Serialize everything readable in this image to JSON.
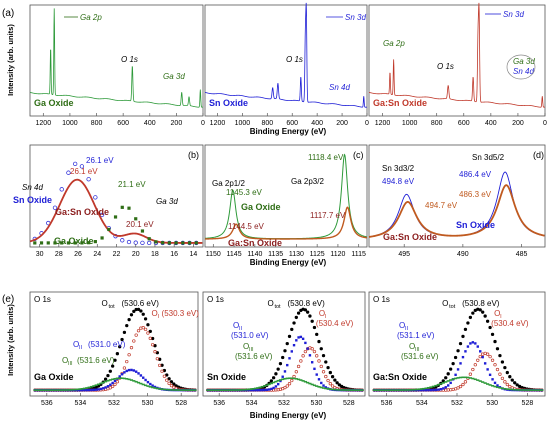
{
  "colors": {
    "green": "#2e9a3a",
    "dark_green": "#2f6e16",
    "blue": "#1f1fd6",
    "red": "#c0392b",
    "brown": "#c05a1f",
    "dark_red": "#8b1d1d",
    "black": "#000000",
    "axis": "#333333"
  },
  "chart_data": [
    {
      "panel": "a",
      "type": "line",
      "panel_label": "(a)",
      "ylabel": "Intensity (arb. units)",
      "xlabel": "Binding Energy (eV)",
      "xlim": [
        1300,
        0
      ],
      "subplots": [
        {
          "name": "Ga Oxide",
          "color": "green",
          "xticks": [
            1200,
            1000,
            800,
            600,
            400,
            200,
            0
          ],
          "annotations": [
            "Ga 2p",
            "O 1s",
            "Ga 3d"
          ],
          "peaks": [
            {
              "x": 1118,
              "h": 0.78,
              "w": 3
            },
            {
              "x": 1145,
              "h": 0.42,
              "w": 3
            },
            {
              "x": 531,
              "h": 0.32,
              "w": 4
            },
            {
              "x": 160,
              "h": 0.12,
              "w": 4
            },
            {
              "x": 105,
              "h": 0.08,
              "w": 4
            },
            {
              "x": 20,
              "h": 0.16,
              "w": 3
            }
          ]
        },
        {
          "name": "Sn Oxide",
          "color": "blue",
          "xticks": [
            1200,
            1000,
            800,
            600,
            400,
            200,
            0
          ],
          "annotations": [
            "Sn 3d",
            "O 1s",
            "Sn 4d"
          ],
          "peaks": [
            {
              "x": 487,
              "h": 0.8,
              "w": 4
            },
            {
              "x": 495,
              "h": 0.55,
              "w": 4
            },
            {
              "x": 531,
              "h": 0.22,
              "w": 4
            },
            {
              "x": 715,
              "h": 0.14,
              "w": 5
            },
            {
              "x": 757,
              "h": 0.1,
              "w": 5
            },
            {
              "x": 26,
              "h": 0.1,
              "w": 3
            }
          ]
        },
        {
          "name": "Ga:Sn Oxide",
          "color": "red",
          "xticks": [
            1200,
            1000,
            800,
            600,
            400,
            200,
            0
          ],
          "annotations": [
            "Sn 3d",
            "Ga 2p",
            "O 1s",
            "Ga 3d",
            "Sn 4d"
          ],
          "peaks": [
            {
              "x": 487,
              "h": 0.8,
              "w": 4
            },
            {
              "x": 495,
              "h": 0.55,
              "w": 4
            },
            {
              "x": 1118,
              "h": 0.32,
              "w": 3
            },
            {
              "x": 1145,
              "h": 0.2,
              "w": 3
            },
            {
              "x": 531,
              "h": 0.22,
              "w": 4
            },
            {
              "x": 715,
              "h": 0.12,
              "w": 5
            },
            {
              "x": 20,
              "h": 0.1,
              "w": 3
            }
          ]
        }
      ]
    },
    {
      "panel": "b",
      "type": "line",
      "panel_label": "(b)",
      "xlabel": "",
      "xlim": [
        31,
        13
      ],
      "xticks": [
        30,
        28,
        26,
        24,
        22,
        20,
        18,
        16,
        14
      ],
      "annotations": [
        "Sn 4d",
        "Ga 3d"
      ],
      "value_labels": [
        {
          "text": "26.1 eV",
          "color": "blue",
          "x": 26.1
        },
        {
          "text": "26.1 eV",
          "color": "red",
          "x": 26.1
        },
        {
          "text": "21.1 eV",
          "color": "dark_green",
          "x": 21.1
        },
        {
          "text": "20.1 eV",
          "color": "dark_red",
          "x": 20.1
        }
      ],
      "legend": [
        "Sn Oxide",
        "Ga:Sn Oxide",
        "Ga Oxide"
      ],
      "series": [
        {
          "name": "Sn Oxide",
          "color": "blue",
          "style": "open-circles",
          "peaks": [
            {
              "x": 26.1,
              "h": 0.78,
              "w": 1.8
            }
          ],
          "base": 0.04
        },
        {
          "name": "Ga:Sn Oxide",
          "color": "red",
          "style": "line",
          "peaks": [
            {
              "x": 26.1,
              "h": 0.62,
              "w": 1.8
            },
            {
              "x": 20.1,
              "h": 0.09,
              "w": 1.2
            }
          ],
          "base": 0.04
        },
        {
          "name": "Ga Oxide",
          "color": "dark_green",
          "style": "squares",
          "peaks": [
            {
              "x": 21.1,
              "h": 0.36,
              "w": 1.2
            }
          ],
          "base": 0.04
        }
      ]
    },
    {
      "panel": "c",
      "type": "line",
      "panel_label": "(c)",
      "xlabel": "",
      "xlim": [
        1152,
        1113
      ],
      "xticks": [
        1150,
        1145,
        1140,
        1135,
        1130,
        1125,
        1120,
        1115
      ],
      "annotations": [
        "Ga 2p1/2",
        "Ga 2p3/2"
      ],
      "value_labels": [
        {
          "text": "1145.3 eV",
          "color": "dark_green"
        },
        {
          "text": "1118.4 eV",
          "color": "dark_green"
        },
        {
          "text": "1144.5 eV",
          "color": "dark_red"
        },
        {
          "text": "1117.7 eV",
          "color": "dark_red"
        }
      ],
      "legend": [
        "Ga Oxide",
        "Ga:Sn Oxide"
      ],
      "series": [
        {
          "name": "Ga Oxide",
          "color": "green",
          "peaks": [
            {
              "x": 1145.3,
              "h": 0.52,
              "w": 0.9
            },
            {
              "x": 1118.4,
              "h": 0.9,
              "w": 0.9
            }
          ]
        },
        {
          "name": "Ga:Sn Oxide",
          "color": "brown",
          "peaks": [
            {
              "x": 1144.5,
              "h": 0.16,
              "w": 1.0
            },
            {
              "x": 1117.7,
              "h": 0.34,
              "w": 1.0
            }
          ]
        }
      ]
    },
    {
      "panel": "d",
      "type": "line",
      "panel_label": "(d)",
      "xlabel": "",
      "xlim": [
        498,
        483
      ],
      "xticks": [
        495,
        490,
        485
      ],
      "annotations": [
        "Sn 3d3/2",
        "Sn 3d5/2"
      ],
      "value_labels": [
        {
          "text": "494.8 eV",
          "color": "blue"
        },
        {
          "text": "486.4 eV",
          "color": "blue"
        },
        {
          "text": "494.7 eV",
          "color": "brown"
        },
        {
          "text": "486.3 eV",
          "color": "brown"
        }
      ],
      "legend": [
        "Ga:Sn Oxide",
        "Sn Oxide"
      ],
      "series": [
        {
          "name": "Sn Oxide",
          "color": "blue",
          "peaks": [
            {
              "x": 494.8,
              "h": 0.48,
              "w": 0.85
            },
            {
              "x": 486.4,
              "h": 0.72,
              "w": 0.85
            }
          ]
        },
        {
          "name": "Ga:Sn Oxide",
          "color": "brown",
          "peaks": [
            {
              "x": 494.7,
              "h": 0.4,
              "w": 0.95
            },
            {
              "x": 486.3,
              "h": 0.58,
              "w": 0.95
            }
          ]
        }
      ]
    },
    {
      "panel": "e",
      "type": "scatter",
      "panel_label": "(e)",
      "ylabel": "Intensity (arb. units)",
      "xlabel": "Binding Energy (eV)",
      "xlim": [
        537,
        527
      ],
      "xticks": [
        536,
        534,
        532,
        530,
        528
      ],
      "subplots": [
        {
          "name": "Ga Oxide",
          "title": "O 1s",
          "labels": {
            "tot": "O",
            "tot_sub": "tot",
            "tot_val": "(530.6 eV)",
            "I": "O",
            "I_sub": "I",
            "I_val": "(530.3 eV)",
            "II": "O",
            "II_sub": "II",
            "II_val": "(531.0 eV)",
            "III": "O",
            "III_sub": "III",
            "III_val": "(531.6 eV)"
          },
          "components": [
            {
              "key": "tot",
              "color": "black",
              "x": 530.6,
              "h": 0.88,
              "w": 0.95
            },
            {
              "key": "I",
              "color": "red",
              "x": 530.3,
              "h": 0.68,
              "w": 0.75
            },
            {
              "key": "II",
              "color": "blue",
              "x": 531.0,
              "h": 0.22,
              "w": 0.75
            },
            {
              "key": "III",
              "color": "green",
              "x": 531.6,
              "h": 0.13,
              "w": 1.1
            }
          ]
        },
        {
          "name": "Sn Oxide",
          "title": "O 1s",
          "labels": {
            "tot": "O",
            "tot_sub": "tot",
            "tot_val": "(530.8 eV)",
            "I": "O",
            "I_sub": "I",
            "I_val": "(530.4 eV)",
            "II": "O",
            "II_sub": "II",
            "II_val": "(531.0 eV)",
            "III": "O",
            "III_sub": "III",
            "III_val": "(531.6 eV)"
          },
          "components": [
            {
              "key": "tot",
              "color": "black",
              "x": 530.8,
              "h": 0.88,
              "w": 0.95
            },
            {
              "key": "I",
              "color": "red",
              "x": 530.4,
              "h": 0.46,
              "w": 0.65
            },
            {
              "key": "II",
              "color": "blue",
              "x": 531.0,
              "h": 0.58,
              "w": 0.65
            },
            {
              "key": "III",
              "color": "green",
              "x": 531.6,
              "h": 0.13,
              "w": 1.1
            }
          ]
        },
        {
          "name": "Ga:Sn Oxide",
          "title": "O 1s",
          "labels": {
            "tot": "O",
            "tot_sub": "tot",
            "tot_val": "(530.8 eV)",
            "I": "O",
            "I_sub": "I",
            "I_val": "(530.4 eV)",
            "II": "O",
            "II_sub": "II",
            "II_val": "(531.1 eV)",
            "III": "O",
            "III_sub": "III",
            "III_val": "(531.6 eV)"
          },
          "components": [
            {
              "key": "tot",
              "color": "black",
              "x": 530.8,
              "h": 0.88,
              "w": 0.95
            },
            {
              "key": "I",
              "color": "red",
              "x": 530.4,
              "h": 0.4,
              "w": 0.65
            },
            {
              "key": "II",
              "color": "blue",
              "x": 531.1,
              "h": 0.52,
              "w": 0.65
            },
            {
              "key": "III",
              "color": "green",
              "x": 531.6,
              "h": 0.14,
              "w": 1.1
            }
          ]
        }
      ]
    }
  ]
}
